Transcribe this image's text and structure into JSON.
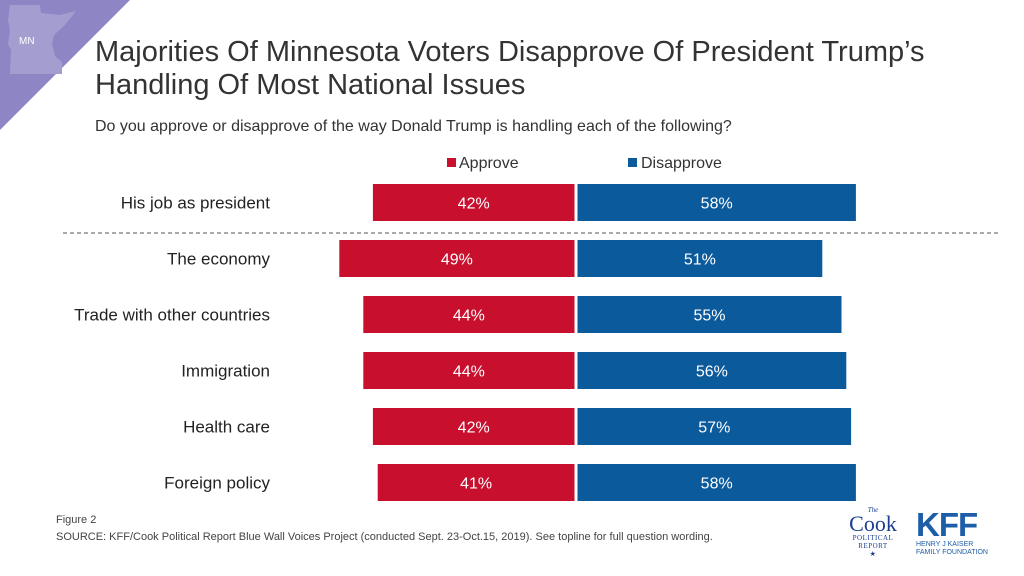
{
  "header": {
    "state_badge": "MN",
    "title_line1": "Majorities Of Minnesota Voters Disapprove Of President Trump’s",
    "title_line2": "Handling Of Most National Issues",
    "subtitle": "Do you approve or disapprove of the way Donald Trump is handling each of the following?"
  },
  "colors": {
    "approve": "#c8102e",
    "disapprove": "#0b5a9c",
    "corner": "#8e86c4",
    "corner_state": "#a49ed0"
  },
  "chart_data": {
    "type": "bar",
    "orientation": "horizontal-diverging",
    "categories": [
      "His job as president",
      "The economy",
      "Trade with other countries",
      "Immigration",
      "Health care",
      "Foreign policy"
    ],
    "series": [
      {
        "name": "Approve",
        "values": [
          42,
          49,
          44,
          44,
          42,
          41
        ]
      },
      {
        "name": "Disapprove",
        "values": [
          58,
          51,
          55,
          56,
          57,
          58
        ]
      }
    ],
    "value_labels": {
      "Approve": [
        "42%",
        "49%",
        "44%",
        "44%",
        "42%",
        "41%"
      ],
      "Disapprove": [
        "58%",
        "51%",
        "55%",
        "56%",
        "57%",
        "58%"
      ]
    },
    "legend_placement": "top",
    "grid": false,
    "separator_after_first_row": true
  },
  "footer": {
    "figure": "Figure 2",
    "source": "SOURCE: KFF/Cook Political Report Blue Wall Voices Project (conducted Sept. 23-Oct.15, 2019). See topline for full question wording."
  },
  "logos": {
    "cook_the": "The",
    "cook_name": "Cook",
    "cook_sub1": "POLITICAL",
    "cook_sub2": "REPORT",
    "cook_star": "★",
    "kff_name": "KFF",
    "kff_sub1": "HENRY J KAISER",
    "kff_sub2": "FAMILY FOUNDATION"
  }
}
